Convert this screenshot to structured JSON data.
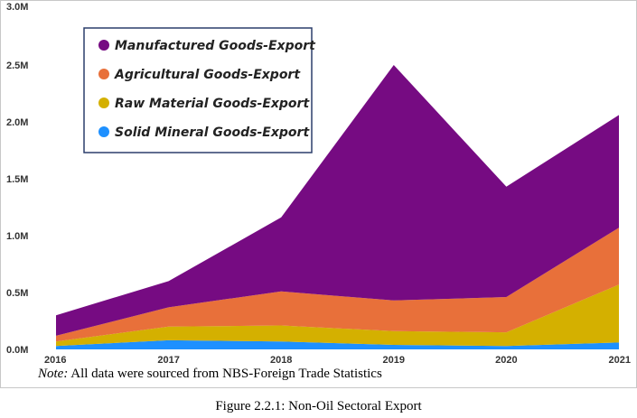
{
  "chart_data": {
    "type": "area",
    "stacked": true,
    "categories": [
      "2016",
      "2017",
      "2018",
      "2019",
      "2020",
      "2021"
    ],
    "y_ticks": [
      "0.0M",
      "0.5M",
      "1.0M",
      "1.5M",
      "2.0M",
      "2.5M",
      "3.0M"
    ],
    "ylim": [
      0,
      3000000
    ],
    "grid": false,
    "legend_position": "top-left",
    "series": [
      {
        "name": "Solid Mineral Goods-Export",
        "color": "#1e90ff",
        "values": [
          30000,
          80000,
          70000,
          40000,
          30000,
          60000
        ]
      },
      {
        "name": "Raw Material Goods-Export",
        "color": "#d4b000",
        "values": [
          40000,
          120000,
          140000,
          120000,
          120000,
          510000
        ]
      },
      {
        "name": "Agricultural Goods-Export",
        "color": "#e8703a",
        "values": [
          50000,
          170000,
          300000,
          270000,
          310000,
          500000
        ]
      },
      {
        "name": "Manufactured Goods-Export",
        "color": "#760b82",
        "values": [
          180000,
          230000,
          650000,
          2070000,
          970000,
          990000
        ]
      }
    ],
    "legend_order": [
      "Manufactured Goods-Export",
      "Agricultural Goods-Export",
      "Raw Material Goods-Export",
      "Solid Mineral Goods-Export"
    ]
  },
  "note": {
    "label": "Note:",
    "text": " All data were sourced from NBS-Foreign Trade Statistics"
  },
  "caption": "Figure 2.2.1: Non-Oil Sectoral Export"
}
